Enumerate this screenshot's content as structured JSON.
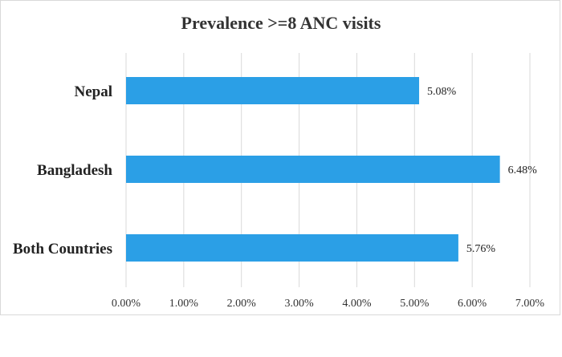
{
  "chart_data": {
    "type": "bar",
    "orientation": "horizontal",
    "title": "Prevalence >=8 ANC visits",
    "categories": [
      "Nepal",
      "Bangladesh",
      "Both Countries"
    ],
    "values": [
      5.08,
      6.48,
      5.76
    ],
    "data_labels": [
      "5.08%",
      "6.48%",
      "5.76%"
    ],
    "xlim": [
      0,
      7
    ],
    "x_ticks": [
      0,
      1,
      2,
      3,
      4,
      5,
      6,
      7
    ],
    "x_tick_labels": [
      "0.00%",
      "1.00%",
      "2.00%",
      "3.00%",
      "4.00%",
      "5.00%",
      "6.00%",
      "7.00%"
    ],
    "xlabel": "",
    "ylabel": "",
    "grid": "vertical",
    "bar_color": "#2b9fe6",
    "grid_color": "#d9d9d9"
  }
}
